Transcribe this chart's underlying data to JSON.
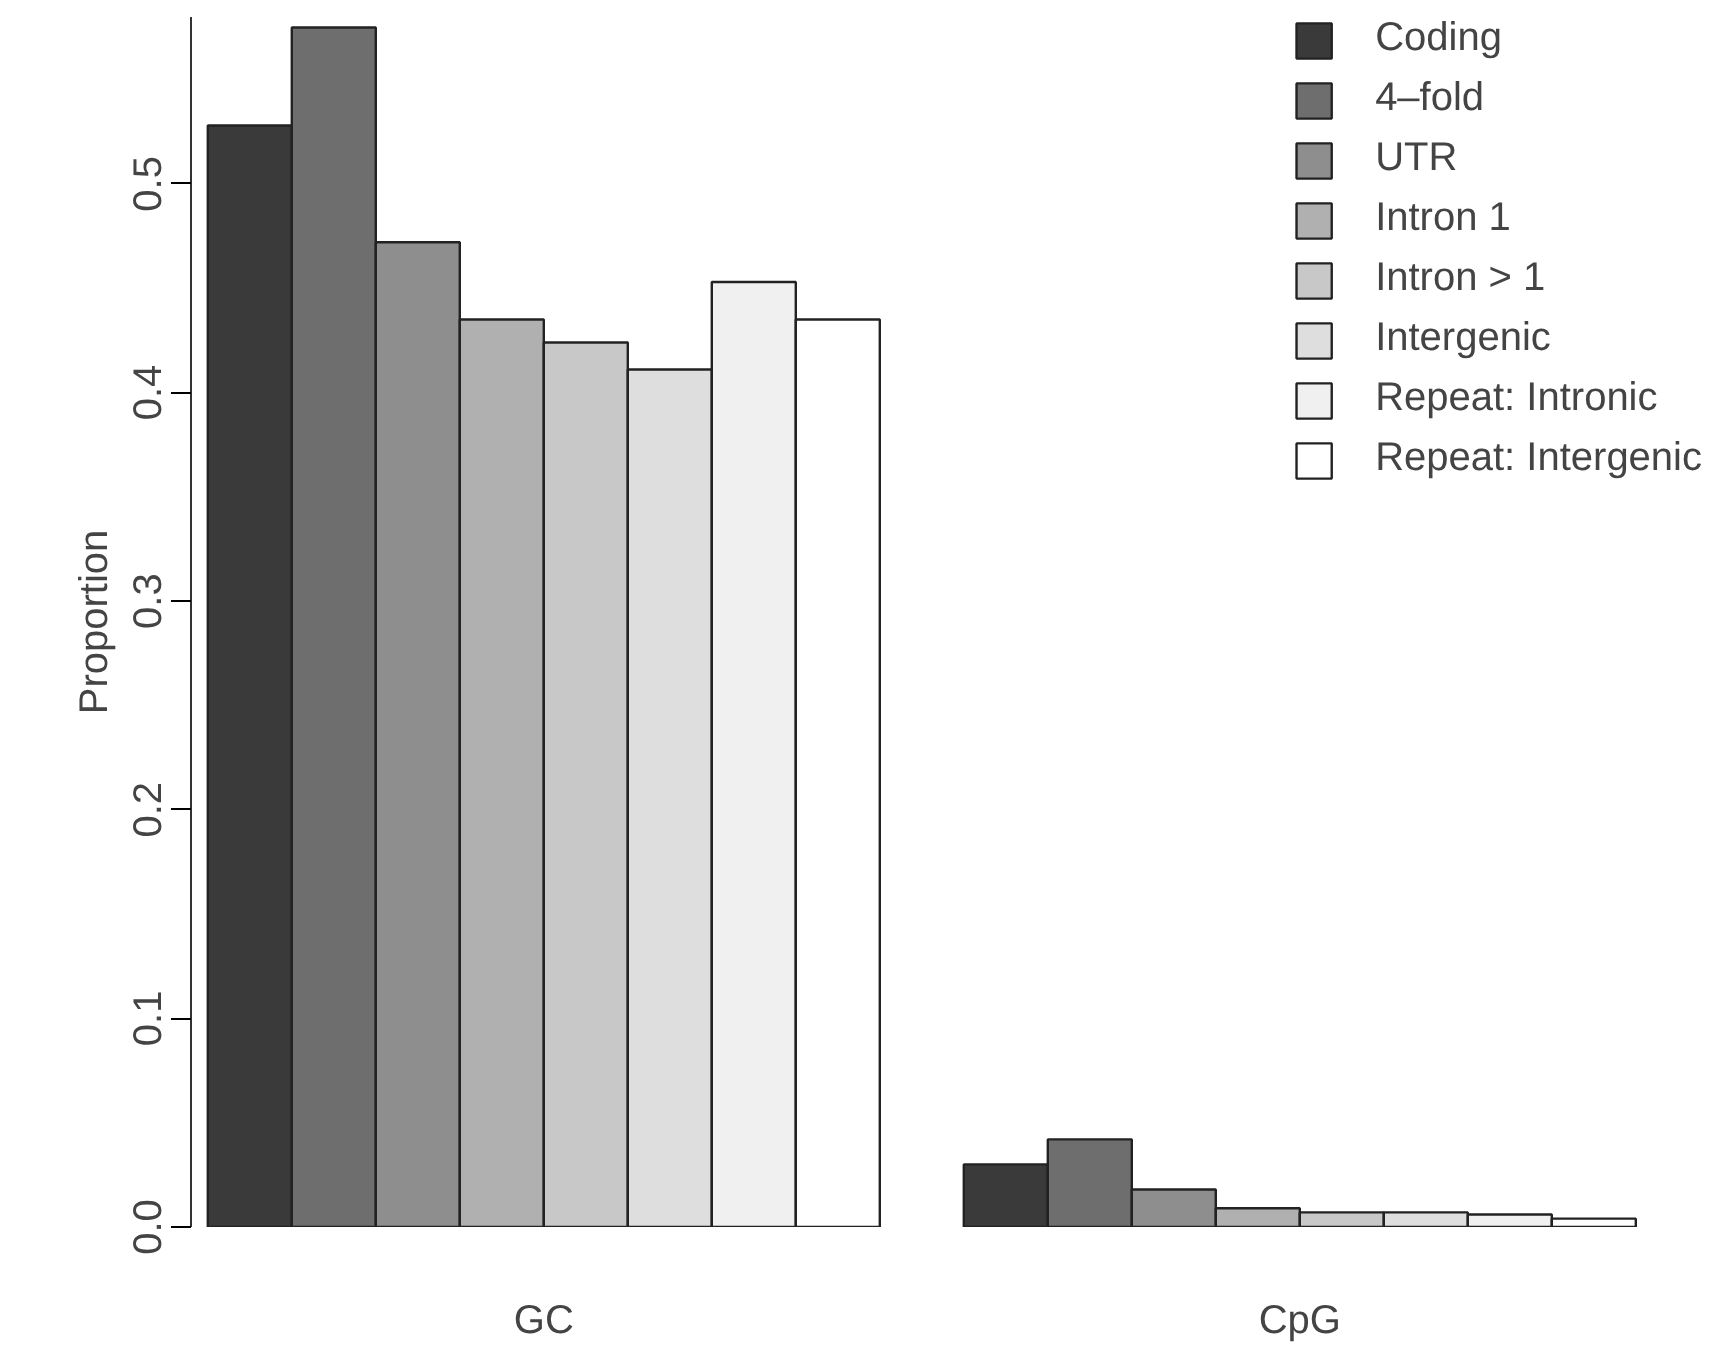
{
  "chart_data": {
    "type": "bar",
    "ylabel": "Proportion",
    "categories": [
      "GC",
      "CpG"
    ],
    "series": [
      {
        "name": "Coding",
        "color": "#3a3a3a",
        "values": [
          0.528,
          0.03
        ]
      },
      {
        "name": "4–fold",
        "color": "#6e6e6e",
        "values": [
          0.575,
          0.042
        ]
      },
      {
        "name": "UTR",
        "color": "#8e8e8e",
        "values": [
          0.472,
          0.018
        ]
      },
      {
        "name": "Intron 1",
        "color": "#b0b0b0",
        "values": [
          0.435,
          0.009
        ]
      },
      {
        "name": "Intron > 1",
        "color": "#c8c8c8",
        "values": [
          0.424,
          0.007
        ]
      },
      {
        "name": "Intergenic",
        "color": "#dedede",
        "values": [
          0.411,
          0.007
        ]
      },
      {
        "name": "Repeat: Intronic",
        "color": "#f0f0f0",
        "values": [
          0.453,
          0.006
        ]
      },
      {
        "name": "Repeat: Intergenic",
        "color": "#ffffff",
        "values": [
          0.435,
          0.004
        ]
      }
    ],
    "ylim": [
      0,
      0.58
    ],
    "yticks": [
      {
        "value": 0,
        "label": "0.0"
      },
      0.1,
      0.2,
      0.3,
      0.4,
      0.5
    ],
    "grid": false,
    "legend": "top right"
  }
}
